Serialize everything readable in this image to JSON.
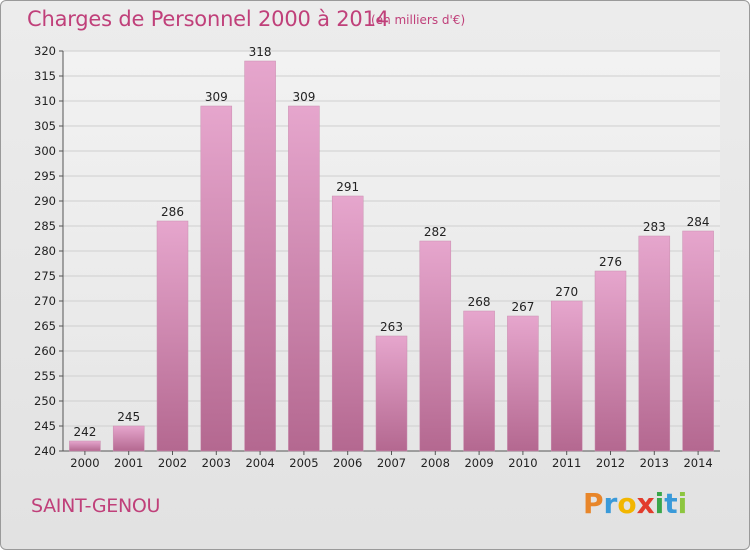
{
  "header": {
    "title": "Charges de Personnel 2000 à 2014",
    "subtitle": "(en milliers d'€)"
  },
  "footer": {
    "commune": "SAINT-GENOU",
    "logo_letters": [
      {
        "ch": "P",
        "color": "#e8862a"
      },
      {
        "ch": "r",
        "color": "#3a9ad9"
      },
      {
        "ch": "o",
        "color": "#f2b600"
      },
      {
        "ch": "x",
        "color": "#e23c2c"
      },
      {
        "ch": "i",
        "color": "#3aa64a"
      },
      {
        "ch": "t",
        "color": "#3a9ad9"
      },
      {
        "ch": "i",
        "color": "#8dc63f"
      }
    ]
  },
  "colors": {
    "bar_light": "#e6a6cd",
    "bar_dark": "#b46890",
    "accent": "#c0407a"
  },
  "chart_data": {
    "type": "bar",
    "categories": [
      "2000",
      "2001",
      "2002",
      "2003",
      "2004",
      "2005",
      "2006",
      "2007",
      "2008",
      "2009",
      "2010",
      "2011",
      "2012",
      "2013",
      "2014"
    ],
    "values": [
      242,
      245,
      286,
      309,
      318,
      309,
      291,
      263,
      282,
      268,
      267,
      270,
      276,
      283,
      284
    ],
    "ylim": [
      240,
      320
    ],
    "yticks": [
      240,
      245,
      250,
      255,
      260,
      265,
      270,
      275,
      280,
      285,
      290,
      295,
      300,
      305,
      310,
      315,
      320
    ],
    "grid": true
  }
}
